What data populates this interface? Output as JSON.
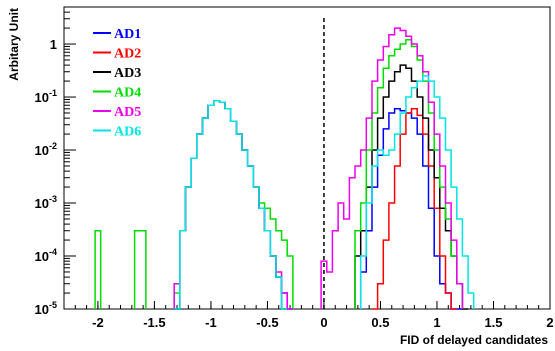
{
  "chart_data": {
    "type": "line",
    "xlabel": "FID of delayed candidates",
    "ylabel": "Arbitary Unit",
    "xlim": [
      -2.3,
      2.0
    ],
    "ylim": [
      1e-05,
      5
    ],
    "yscale": "log",
    "x_ticks": [
      -2,
      -1.5,
      -1,
      -0.5,
      0,
      0.5,
      1,
      1.5,
      2
    ],
    "x_tick_labels": [
      "-2",
      "-1.5",
      "-1",
      "-0.5",
      "0",
      "0.5",
      "1",
      "1.5",
      "2"
    ],
    "y_ticks": [
      1e-05,
      0.0001,
      0.001,
      0.01,
      0.1,
      1
    ],
    "y_tick_labels": [
      {
        "base": "10",
        "exp": "-5"
      },
      {
        "base": "10",
        "exp": "-4"
      },
      {
        "base": "10",
        "exp": "-3"
      },
      {
        "base": "10",
        "exp": "-2"
      },
      {
        "base": "10",
        "exp": "-1"
      },
      {
        "base": "1",
        "exp": ""
      }
    ],
    "cut_line_x": 0,
    "legend_position": "top-left",
    "series": [
      {
        "name": "AD1",
        "color": "#0000ff",
        "x": [
          -1.3,
          -1.25,
          -1.2,
          -1.15,
          -1.1,
          -1.05,
          -1.0,
          -0.95,
          -0.9,
          -0.85,
          -0.8,
          -0.75,
          -0.7,
          -0.65,
          -0.6,
          -0.55,
          -0.5,
          -0.45,
          -0.4,
          -0.35,
          -0.3,
          0.35,
          0.4,
          0.45,
          0.5,
          0.55,
          0.6,
          0.65,
          0.7,
          0.75,
          0.8,
          0.85,
          0.9,
          0.95,
          1.0,
          1.05,
          1.1,
          1.15,
          1.2
        ],
        "y": [
          1e-05,
          0.0003,
          0.002,
          0.007,
          0.02,
          0.04,
          0.07,
          0.085,
          0.08,
          0.06,
          0.035,
          0.02,
          0.01,
          0.005,
          0.002,
          0.0008,
          0.0003,
          0.0001,
          4e-05,
          2e-05,
          1e-05,
          5e-05,
          0.0003,
          0.002,
          0.008,
          0.025,
          0.05,
          0.06,
          0.055,
          0.05,
          0.04,
          0.02,
          0.005,
          0.0008,
          0.0001,
          3e-05,
          2e-05,
          1e-05,
          1e-05
        ]
      },
      {
        "name": "AD2",
        "color": "#ff0000",
        "x": [
          0.45,
          0.5,
          0.55,
          0.6,
          0.65,
          0.7,
          0.75,
          0.8,
          0.85,
          0.9,
          0.95,
          1.0,
          1.05,
          1.1,
          1.15
        ],
        "y": [
          1e-05,
          3e-05,
          0.0002,
          0.001,
          0.005,
          0.02,
          0.05,
          0.06,
          0.045,
          0.02,
          0.005,
          0.0008,
          0.0001,
          2e-05,
          1e-05
        ]
      },
      {
        "name": "AD3",
        "color": "#000000",
        "x": [
          -1.3,
          -1.25,
          -1.2,
          -1.15,
          -1.1,
          -1.05,
          -1.0,
          -0.95,
          -0.9,
          -0.85,
          -0.8,
          -0.75,
          -0.7,
          -0.65,
          -0.6,
          -0.55,
          -0.5,
          -0.45,
          -0.4,
          -0.35,
          0.3,
          0.35,
          0.4,
          0.45,
          0.5,
          0.55,
          0.6,
          0.65,
          0.7,
          0.75,
          0.8,
          0.85,
          0.9,
          0.95,
          1.0,
          1.05,
          1.1,
          1.15,
          1.2,
          1.25
        ],
        "y": [
          1e-05,
          0.0003,
          0.002,
          0.007,
          0.02,
          0.04,
          0.07,
          0.085,
          0.08,
          0.06,
          0.035,
          0.02,
          0.01,
          0.005,
          0.002,
          0.0008,
          0.0003,
          0.0001,
          4e-05,
          1e-05,
          0.0001,
          0.0003,
          0.002,
          0.01,
          0.04,
          0.1,
          0.2,
          0.3,
          0.4,
          0.35,
          0.2,
          0.1,
          0.04,
          0.01,
          0.003,
          0.0008,
          0.0003,
          0.0001,
          3e-05,
          1e-05
        ]
      },
      {
        "name": "AD4",
        "color": "#00dd00",
        "x": [
          -2.0,
          -1.65,
          -1.6,
          -1.3,
          -1.25,
          -1.2,
          -1.15,
          -1.1,
          -1.05,
          -1.0,
          -0.95,
          -0.9,
          -0.85,
          -0.8,
          -0.75,
          -0.7,
          -0.65,
          -0.6,
          -0.55,
          -0.5,
          -0.45,
          -0.4,
          -0.35,
          -0.3,
          0.3,
          0.35,
          0.4,
          0.45,
          0.5,
          0.55,
          0.6,
          0.65,
          0.7,
          0.75,
          0.8,
          0.85,
          0.9,
          0.95,
          1.0,
          1.05,
          1.1,
          1.15,
          1.2
        ],
        "y": [
          0.0003,
          0.0003,
          0.0003,
          2e-05,
          0.0003,
          0.002,
          0.007,
          0.02,
          0.04,
          0.07,
          0.085,
          0.08,
          0.06,
          0.035,
          0.02,
          0.01,
          0.005,
          0.002,
          0.001,
          0.0008,
          0.0005,
          0.0003,
          0.0002,
          0.0001,
          0.0003,
          0.001,
          0.01,
          0.05,
          0.15,
          0.35,
          0.6,
          0.8,
          1.0,
          1.2,
          0.9,
          0.5,
          0.2,
          0.05,
          0.01,
          0.002,
          0.0005,
          0.0001,
          3e-05
        ]
      },
      {
        "name": "AD5",
        "color": "#ee00ee",
        "x": [
          -1.3,
          -1.25,
          -1.2,
          -1.15,
          -1.1,
          -1.05,
          -1.0,
          -0.95,
          -0.9,
          -0.85,
          -0.8,
          -0.75,
          -0.7,
          -0.65,
          -0.6,
          -0.55,
          -0.5,
          -0.45,
          -0.4,
          -0.35,
          -0.3,
          0.0,
          0.05,
          0.1,
          0.15,
          0.2,
          0.25,
          0.3,
          0.35,
          0.4,
          0.45,
          0.5,
          0.55,
          0.6,
          0.65,
          0.7,
          0.75,
          0.8,
          0.85,
          0.9,
          0.95,
          1.0,
          1.05,
          1.1,
          1.15,
          1.2
        ],
        "y": [
          3e-05,
          0.0003,
          0.002,
          0.007,
          0.02,
          0.04,
          0.07,
          0.085,
          0.08,
          0.06,
          0.035,
          0.02,
          0.01,
          0.005,
          0.002,
          0.0008,
          0.0003,
          0.0001,
          5e-05,
          2e-05,
          1e-05,
          8e-05,
          5e-05,
          0.0003,
          0.001,
          0.0005,
          0.003,
          0.005,
          0.01,
          0.04,
          0.2,
          0.5,
          0.9,
          1.5,
          2.0,
          1.8,
          1.4,
          1.0,
          0.6,
          0.3,
          0.08,
          0.02,
          0.005,
          0.001,
          0.0002,
          3e-05
        ]
      },
      {
        "name": "AD6",
        "color": "#00e5e5",
        "x": [
          -1.3,
          -1.25,
          -1.2,
          -1.15,
          -1.1,
          -1.05,
          -1.0,
          -0.95,
          -0.9,
          -0.85,
          -0.8,
          -0.75,
          -0.7,
          -0.65,
          -0.6,
          -0.55,
          -0.5,
          -0.45,
          -0.4,
          -0.35,
          0.35,
          0.4,
          0.45,
          0.5,
          0.55,
          0.6,
          0.65,
          0.7,
          0.75,
          0.8,
          0.85,
          0.9,
          0.95,
          1.0,
          1.05,
          1.1,
          1.15,
          1.2,
          1.25,
          1.3
        ],
        "y": [
          1e-05,
          0.0003,
          0.002,
          0.007,
          0.02,
          0.04,
          0.07,
          0.085,
          0.08,
          0.06,
          0.035,
          0.02,
          0.01,
          0.005,
          0.002,
          0.0008,
          0.0003,
          0.0001,
          4e-05,
          1e-05,
          0.0001,
          0.001,
          0.005,
          0.01,
          0.008,
          0.01,
          0.02,
          0.05,
          0.1,
          0.15,
          0.2,
          0.25,
          0.2,
          0.1,
          0.04,
          0.01,
          0.002,
          0.0005,
          0.0001,
          2e-05
        ]
      }
    ]
  }
}
